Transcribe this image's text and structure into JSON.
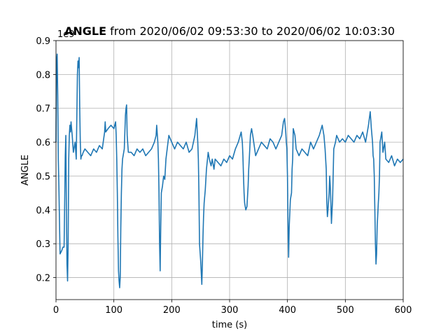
{
  "chart_data": {
    "type": "line",
    "title_bold": "ANGLE",
    "title_rest": " from 2020/06/02 09:53:30 to 2020/06/02 10:03:30",
    "xlabel": "time (s)",
    "ylabel": "ANGLE",
    "offset_text": "1e9",
    "xlim": [
      0,
      600
    ],
    "ylim": [
      0.135,
      0.9
    ],
    "grid": true,
    "x_ticks": [
      0,
      100,
      200,
      300,
      400,
      500,
      600
    ],
    "x_tick_labels": [
      "0",
      "100",
      "200",
      "300",
      "400",
      "500",
      "600"
    ],
    "y_ticks": [
      0.2,
      0.3,
      0.4,
      0.5,
      0.6,
      0.7,
      0.8,
      0.9
    ],
    "y_tick_labels": [
      "0.2",
      "0.3",
      "0.4",
      "0.5",
      "0.6",
      "0.7",
      "0.8",
      "0.9"
    ],
    "line_color": "#1f77b4",
    "series": [
      {
        "x": [
          0,
          1,
          2,
          3,
          4,
          5,
          7,
          10,
          12,
          14,
          15,
          16,
          17,
          18,
          19,
          20,
          21,
          22,
          23,
          24,
          25,
          26,
          28,
          30,
          33,
          35,
          37,
          38,
          39,
          40,
          41,
          42,
          43,
          44,
          45,
          47,
          50,
          55,
          60,
          65,
          70,
          75,
          80,
          84,
          85,
          86,
          90,
          95,
          100,
          103,
          104,
          105,
          106,
          107,
          108,
          109,
          110,
          111,
          112,
          113,
          114,
          115,
          118,
          120,
          121,
          122,
          123,
          125,
          130,
          135,
          140,
          145,
          150,
          155,
          160,
          165,
          170,
          173,
          174,
          176,
          177,
          178,
          179,
          180,
          181,
          182,
          184,
          186,
          188,
          190,
          195,
          200,
          205,
          210,
          215,
          220,
          225,
          230,
          235,
          240,
          243,
          245,
          246,
          247,
          248,
          250,
          252,
          253,
          254,
          255,
          256,
          258,
          260,
          263,
          265,
          268,
          270,
          273,
          275,
          280,
          285,
          290,
          295,
          300,
          305,
          310,
          315,
          320,
          322,
          323,
          324,
          325,
          326,
          328,
          330,
          332,
          333,
          334,
          336,
          338,
          340,
          345,
          350,
          355,
          360,
          365,
          370,
          375,
          380,
          385,
          390,
          393,
          395,
          397,
          398,
          399,
          400,
          401,
          402,
          403,
          405,
          407,
          408,
          409,
          410,
          413,
          415,
          420,
          425,
          430,
          435,
          440,
          445,
          450,
          455,
          460,
          463,
          465,
          467,
          468,
          469,
          470,
          472,
          473,
          474,
          475,
          476,
          478,
          480,
          483,
          485,
          490,
          495,
          500,
          505,
          510,
          515,
          520,
          525,
          530,
          535,
          540,
          543,
          545,
          547,
          548,
          549,
          550,
          551,
          552,
          553,
          554,
          555,
          557,
          558,
          559,
          560,
          563,
          565,
          568,
          570,
          575,
          580,
          585,
          590,
          595,
          600
        ],
        "values": [
          0.6,
          0.84,
          0.86,
          0.74,
          0.55,
          0.47,
          0.27,
          0.28,
          0.29,
          0.29,
          0.42,
          0.56,
          0.62,
          0.4,
          0.24,
          0.19,
          0.3,
          0.55,
          0.62,
          0.65,
          0.63,
          0.66,
          0.62,
          0.57,
          0.6,
          0.55,
          0.8,
          0.84,
          0.82,
          0.85,
          0.7,
          0.6,
          0.55,
          0.56,
          0.56,
          0.57,
          0.58,
          0.57,
          0.56,
          0.58,
          0.57,
          0.59,
          0.58,
          0.63,
          0.66,
          0.63,
          0.64,
          0.65,
          0.64,
          0.66,
          0.62,
          0.55,
          0.45,
          0.32,
          0.22,
          0.19,
          0.17,
          0.2,
          0.35,
          0.45,
          0.52,
          0.55,
          0.58,
          0.68,
          0.7,
          0.71,
          0.62,
          0.57,
          0.57,
          0.56,
          0.58,
          0.57,
          0.58,
          0.56,
          0.57,
          0.58,
          0.6,
          0.62,
          0.65,
          0.6,
          0.55,
          0.45,
          0.3,
          0.22,
          0.35,
          0.45,
          0.47,
          0.5,
          0.49,
          0.55,
          0.62,
          0.6,
          0.58,
          0.6,
          0.59,
          0.58,
          0.6,
          0.57,
          0.58,
          0.62,
          0.67,
          0.6,
          0.55,
          0.45,
          0.3,
          0.25,
          0.18,
          0.24,
          0.32,
          0.38,
          0.42,
          0.46,
          0.52,
          0.57,
          0.55,
          0.53,
          0.55,
          0.52,
          0.55,
          0.54,
          0.53,
          0.55,
          0.54,
          0.56,
          0.55,
          0.58,
          0.6,
          0.63,
          0.6,
          0.56,
          0.5,
          0.45,
          0.42,
          0.4,
          0.41,
          0.47,
          0.52,
          0.55,
          0.62,
          0.64,
          0.62,
          0.56,
          0.58,
          0.6,
          0.59,
          0.58,
          0.61,
          0.6,
          0.58,
          0.6,
          0.62,
          0.66,
          0.67,
          0.63,
          0.6,
          0.58,
          0.5,
          0.35,
          0.26,
          0.35,
          0.43,
          0.45,
          0.52,
          0.55,
          0.64,
          0.62,
          0.58,
          0.56,
          0.58,
          0.57,
          0.56,
          0.6,
          0.58,
          0.6,
          0.62,
          0.65,
          0.62,
          0.58,
          0.52,
          0.42,
          0.38,
          0.4,
          0.45,
          0.5,
          0.47,
          0.42,
          0.36,
          0.43,
          0.58,
          0.6,
          0.62,
          0.6,
          0.61,
          0.6,
          0.62,
          0.61,
          0.6,
          0.62,
          0.61,
          0.63,
          0.6,
          0.65,
          0.69,
          0.64,
          0.6,
          0.56,
          0.55,
          0.5,
          0.4,
          0.3,
          0.24,
          0.27,
          0.35,
          0.42,
          0.45,
          0.5,
          0.6,
          0.63,
          0.57,
          0.6,
          0.55,
          0.54,
          0.56,
          0.53,
          0.55,
          0.54,
          0.55
        ]
      }
    ]
  }
}
